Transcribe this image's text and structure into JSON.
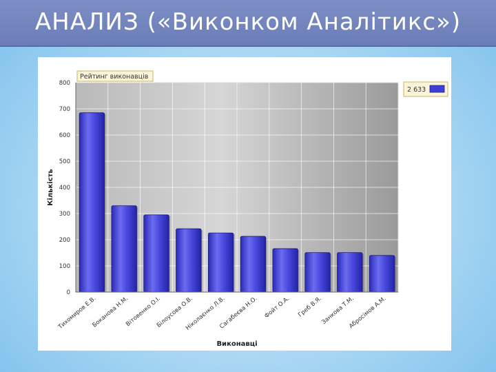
{
  "slide": {
    "title": "АНАЛИЗ («Виконком Аналітикс»)"
  },
  "chart_data": {
    "type": "bar",
    "title": "Рейтинг виконавців",
    "xlabel": "Виконавці",
    "ylabel": "Кількість",
    "ylim": [
      0,
      800
    ],
    "yticks": [
      0,
      100,
      200,
      300,
      400,
      500,
      600,
      700,
      800
    ],
    "categories": [
      "Тихомиров Е.В.",
      "Боканова Н.М.",
      "Вітовенко О.І.",
      "Білоусова О.В.",
      "Ніколаєнко Л.В.",
      "Сагабеєва Н.О.",
      "Фойт О.А.",
      "Греб В.Я.",
      "Занкова Т.М.",
      "Абросімов А.М."
    ],
    "values": [
      685,
      330,
      295,
      242,
      226,
      213,
      166,
      151,
      151,
      140
    ],
    "legend": {
      "label": "2 633",
      "position": "top-right",
      "color": "#3f3fd8"
    },
    "grid": true,
    "bar_color": "#4343d6"
  }
}
